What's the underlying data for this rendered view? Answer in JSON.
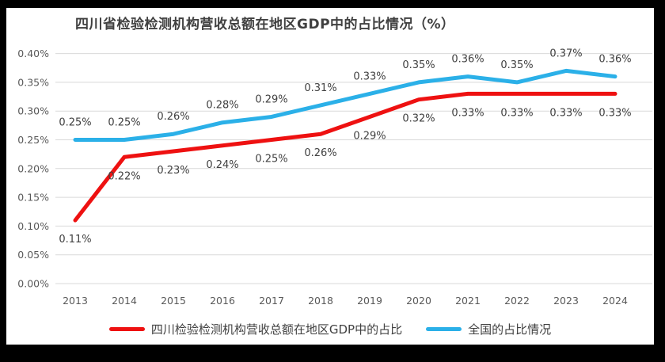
{
  "chart_data": {
    "type": "line",
    "title": "四川省检验检测机构营收总额在地区GDP中的占比情况（%）",
    "x": [
      "2013",
      "2014",
      "2015",
      "2016",
      "2017",
      "2018",
      "2019",
      "2020",
      "2021",
      "2022",
      "2023",
      "2024"
    ],
    "xlabel": "",
    "ylabel": "",
    "ylim": [
      0,
      0.4
    ],
    "grid": true,
    "legend_position": "bottom",
    "yticks": [
      {
        "value": 0.0,
        "label": "0.00%"
      },
      {
        "value": 0.05,
        "label": "0.05%"
      },
      {
        "value": 0.1,
        "label": "0.10%"
      },
      {
        "value": 0.15,
        "label": "0.15%"
      },
      {
        "value": 0.2,
        "label": "0.20%"
      },
      {
        "value": 0.25,
        "label": "0.25%"
      },
      {
        "value": 0.3,
        "label": "0.30%"
      },
      {
        "value": 0.35,
        "label": "0.35%"
      },
      {
        "value": 0.4,
        "label": "0.40%"
      }
    ],
    "series": [
      {
        "name": "四川检验检测机构营收总额在地区GDP中的占比",
        "color": "#ee1111",
        "label_position": "below",
        "values": [
          0.11,
          0.22,
          0.23,
          0.24,
          0.25,
          0.26,
          0.29,
          0.32,
          0.33,
          0.33,
          0.33,
          0.33
        ],
        "labels": [
          "0.11%",
          "0.22%",
          "0.23%",
          "0.24%",
          "0.25%",
          "0.26%",
          "0.29%",
          "0.32%",
          "0.33%",
          "0.33%",
          "0.33%",
          "0.33%"
        ]
      },
      {
        "name": "全国的占比情况",
        "color": "#2bb0e8",
        "label_position": "above",
        "values": [
          0.25,
          0.25,
          0.26,
          0.28,
          0.29,
          0.31,
          0.33,
          0.35,
          0.36,
          0.35,
          0.37,
          0.36
        ],
        "labels": [
          "0.25%",
          "0.25%",
          "0.26%",
          "0.28%",
          "0.29%",
          "0.31%",
          "0.33%",
          "0.35%",
          "0.36%",
          "0.35%",
          "0.37%",
          "0.36%"
        ]
      }
    ],
    "colors": {
      "grid": "#d9d9d9",
      "axis_text": "#595959",
      "data_label_text": "#404040",
      "title_text": "#404040",
      "panel_background": "#ffffff",
      "frame_background": "#000000"
    }
  }
}
